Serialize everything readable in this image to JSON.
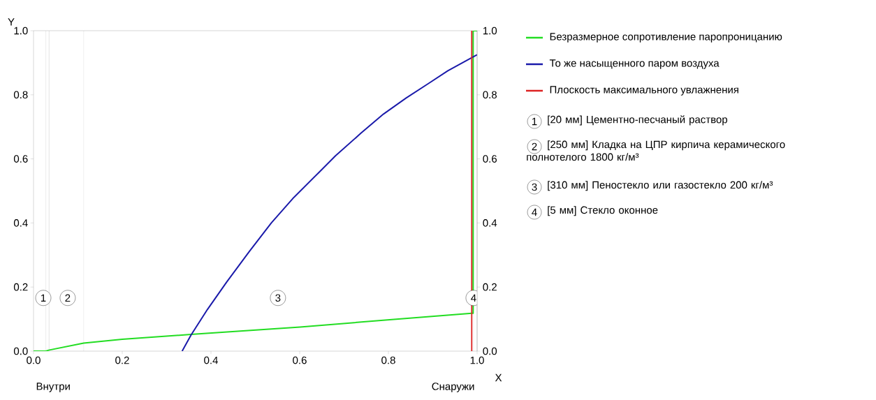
{
  "chart_data": {
    "type": "line",
    "xlabel": "X",
    "ylabel": "Y",
    "xlim": [
      0,
      1
    ],
    "ylim": [
      0,
      1
    ],
    "y2lim": [
      0,
      1
    ],
    "xticks": [
      {
        "value": 0,
        "label": "0.0"
      },
      {
        "value": 0.2,
        "label": "0.2"
      },
      {
        "value": 0.4,
        "label": "0.4"
      },
      {
        "value": 0.6,
        "label": "0.6"
      },
      {
        "value": 0.8,
        "label": "0.8"
      },
      {
        "value": 1,
        "label": "1.0"
      }
    ],
    "yticks": [
      {
        "value": 0,
        "label": "0.0"
      },
      {
        "value": 0.2,
        "label": "0.2"
      },
      {
        "value": 0.4,
        "label": "0.4"
      },
      {
        "value": 0.6,
        "label": "0.6"
      },
      {
        "value": 0.8,
        "label": "0.8"
      },
      {
        "value": 1,
        "label": "1.0"
      }
    ],
    "y2ticks": [
      {
        "value": 0,
        "label": "0.0"
      },
      {
        "value": 0.2,
        "label": "0.2"
      },
      {
        "value": 0.4,
        "label": "0.4"
      },
      {
        "value": 0.6,
        "label": "0.6"
      },
      {
        "value": 0.8,
        "label": "0.8"
      },
      {
        "value": 1,
        "label": "1.0"
      }
    ],
    "series": [
      {
        "name": "Безразмерное сопротивление паропроницанию",
        "color": "#22dd22",
        "x": [
          0,
          0.028,
          0.034,
          0.113,
          0.2,
          0.355,
          0.601,
          0.803,
          0.988,
          0.991,
          0.991,
          1.0
        ],
        "values": [
          0,
          0,
          0.003,
          0.025,
          0.037,
          0.052,
          0.075,
          0.098,
          0.118,
          0.118,
          1.0,
          1.0
        ]
      },
      {
        "name": "То же насыщенного паром воздуха",
        "color": "#1a1aaa",
        "x": [
          0.335,
          0.355,
          0.392,
          0.435,
          0.486,
          0.536,
          0.587,
          0.645,
          0.681,
          0.738,
          0.789,
          0.84,
          0.89,
          0.934,
          1.0
        ],
        "values": [
          0,
          0.05,
          0.13,
          0.215,
          0.31,
          0.4,
          0.48,
          0.56,
          0.61,
          0.68,
          0.74,
          0.79,
          0.835,
          0.875,
          0.925
        ]
      },
      {
        "name": "Плоскость максимального увлажнения",
        "color": "#dd2222",
        "x": [
          0.988,
          0.988
        ],
        "values": [
          0,
          1.0
        ]
      }
    ],
    "ref_lines": [
      {
        "axis": "x",
        "value": 0.028,
        "color": "#b4b4b4"
      },
      {
        "axis": "x",
        "value": 0.035,
        "color": "#b4b4b4"
      },
      {
        "axis": "x",
        "value": 0.113,
        "color": "#b4b4b4"
      },
      {
        "axis": "x",
        "value": 0.992,
        "color": "#b4b4b4"
      }
    ],
    "annotations": [
      {
        "text": "1",
        "x": 0.022,
        "y": 0.166
      },
      {
        "text": "2",
        "x": 0.077,
        "y": 0.166
      },
      {
        "text": "3",
        "x": 0.551,
        "y": 0.166
      },
      {
        "text": "4",
        "x": 0.992,
        "y": 0.166
      },
      "Внутри",
      "Снаружи",
      "[20 мм] Цементно-песчаный раствор",
      "[250 мм] Кладка на ЦПР кирпича керамического полнотелого 1800 кг/м³",
      "[310 мм] Пеностекло или газостекло 200 кг/м³",
      "[5 мм] Стекло оконное"
    ],
    "legend": "right"
  }
}
